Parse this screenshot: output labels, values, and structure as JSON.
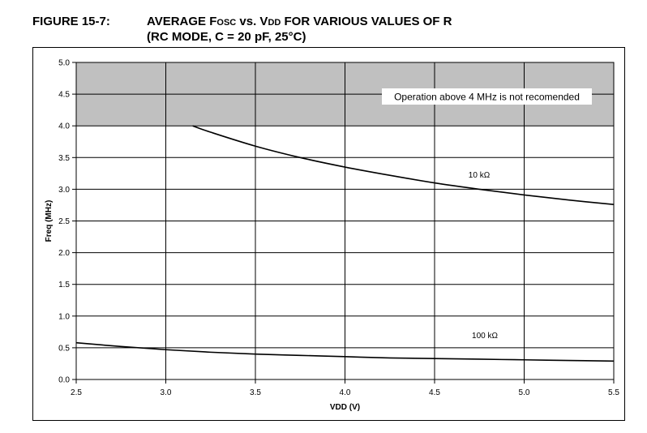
{
  "figure": {
    "label": "FIGURE 15-7:",
    "title_line1": "AVERAGE FOSC vs. VDD FOR VARIOUS VALUES OF R",
    "title_line2": "(RC MODE, C = 20 pF, 25°C)"
  },
  "chart_data": {
    "type": "line",
    "title": "AVERAGE FOSC vs. VDD FOR VARIOUS VALUES OF R (RC MODE, C = 20 pF, 25°C)",
    "xlabel": "VDD (V)",
    "ylabel": "Freq (MHz)",
    "xlim": [
      2.5,
      5.5
    ],
    "ylim": [
      0.0,
      5.0
    ],
    "x_ticks": [
      "2.5",
      "3.0",
      "3.5",
      "4.0",
      "4.5",
      "5.0",
      "5.5"
    ],
    "y_ticks": [
      "0.0",
      "0.5",
      "1.0",
      "1.5",
      "2.0",
      "2.5",
      "3.0",
      "3.5",
      "4.0",
      "4.5",
      "5.0"
    ],
    "grid": true,
    "shaded_region": {
      "y_from": 4.0,
      "y_to": 5.0,
      "color": "#c0c0c0",
      "annotation": "Operation above 4 MHz is not recomended"
    },
    "series": [
      {
        "name": "10 kΩ",
        "x": [
          3.15,
          3.25,
          3.5,
          3.75,
          4.0,
          4.25,
          4.5,
          4.75,
          5.0,
          5.25,
          5.5
        ],
        "y": [
          4.0,
          3.9,
          3.68,
          3.5,
          3.35,
          3.22,
          3.1,
          3.0,
          2.91,
          2.83,
          2.76
        ]
      },
      {
        "name": "100 kΩ",
        "x": [
          2.5,
          2.75,
          3.0,
          3.25,
          3.5,
          3.75,
          4.0,
          4.25,
          4.5,
          4.75,
          5.0,
          5.25,
          5.5
        ],
        "y": [
          0.58,
          0.52,
          0.47,
          0.43,
          0.4,
          0.38,
          0.36,
          0.34,
          0.33,
          0.32,
          0.31,
          0.3,
          0.29
        ]
      }
    ],
    "colors": {
      "curve": "#000000",
      "grid": "#000000",
      "shade": "#c0c0c0"
    }
  }
}
